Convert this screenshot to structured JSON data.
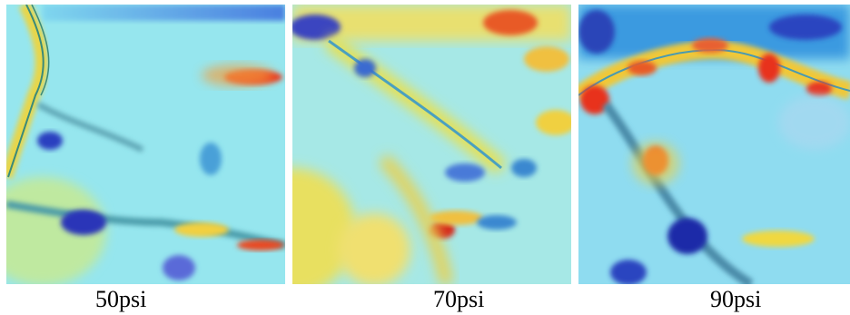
{
  "panels": [
    {
      "caption": "50psi"
    },
    {
      "caption": "70psi"
    },
    {
      "caption": "90psi"
    }
  ],
  "colors": {
    "background": "#8fe3ec",
    "cold": "#2233bb",
    "cool": "#3aa0e0",
    "warm": "#f2e24a",
    "hot": "#e8321e"
  }
}
